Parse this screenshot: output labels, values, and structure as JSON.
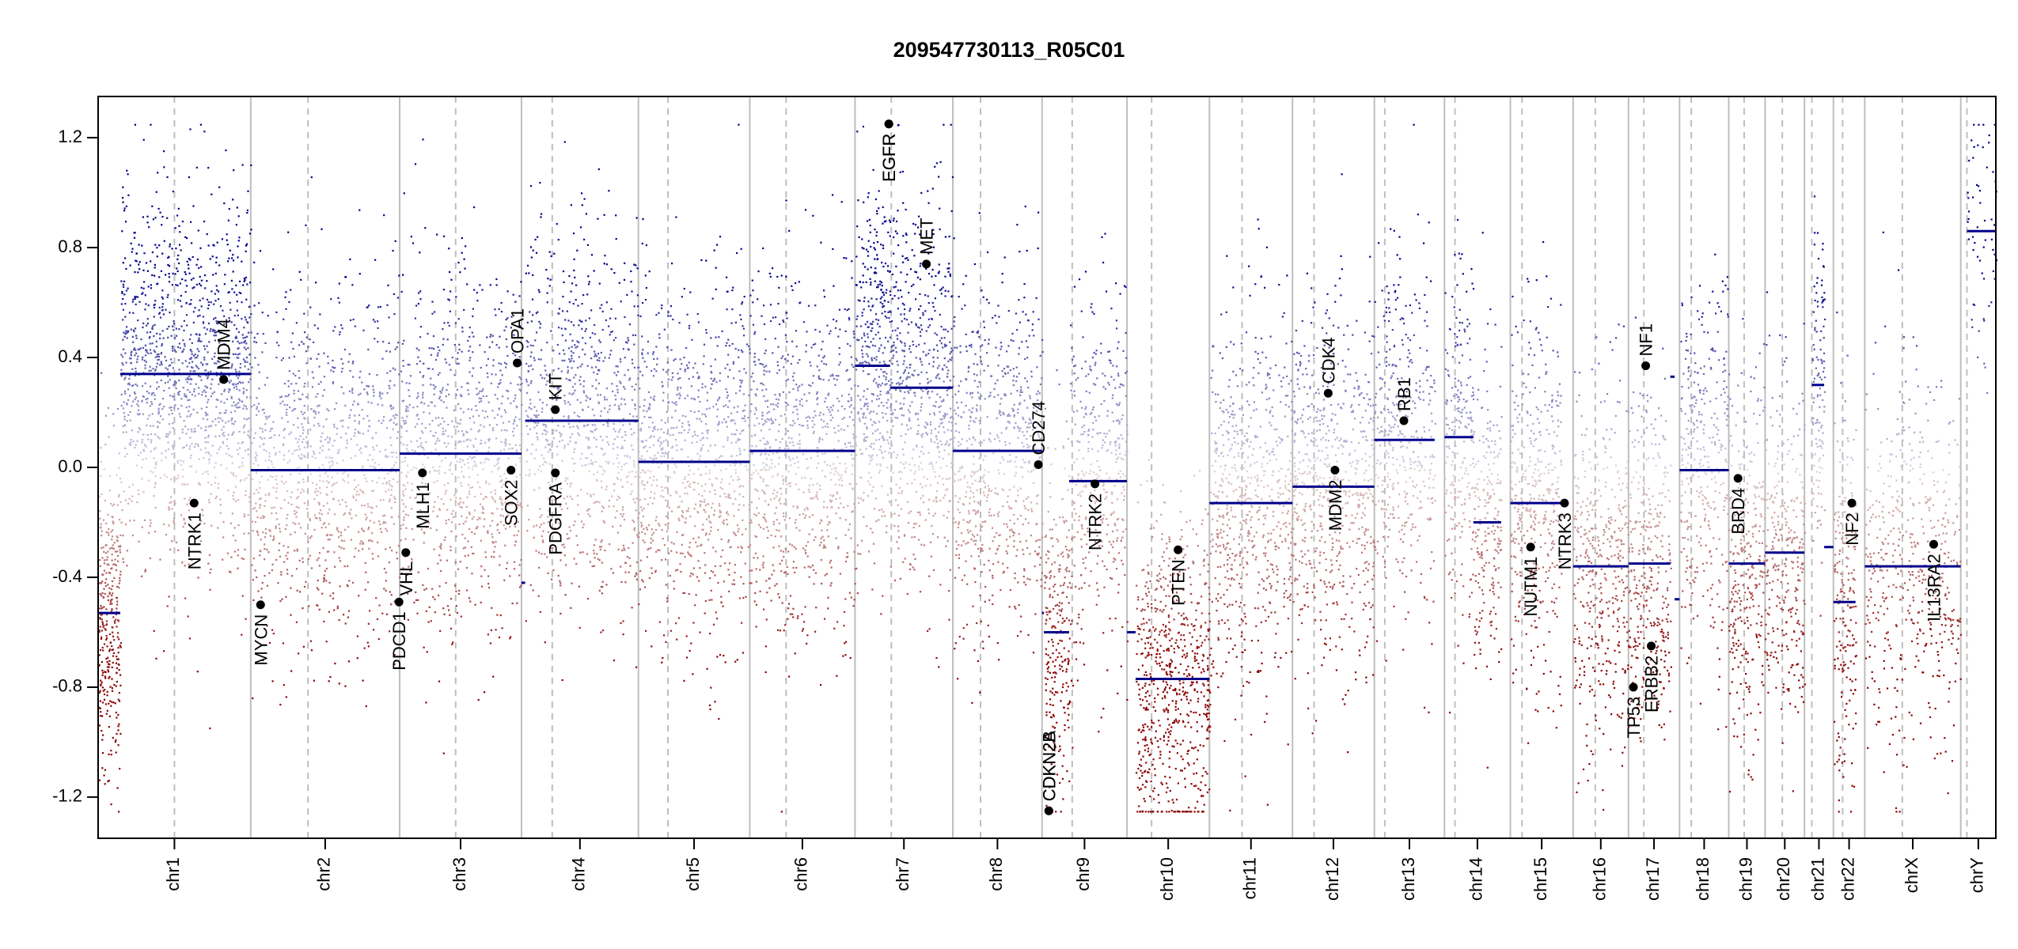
{
  "chart_data": {
    "type": "scatter",
    "title": "209547730113_R05C01",
    "xlabel": "",
    "ylabel": "",
    "ylim": [
      -1.35,
      1.35
    ],
    "y_ticks": [
      -1.2,
      -0.8,
      -0.4,
      0.0,
      0.4,
      0.8,
      1.2
    ],
    "y_tick_labels": [
      "-1.2",
      "-0.8",
      "-0.4",
      "0.0",
      "0.4",
      "0.8",
      "1.2"
    ],
    "grid": false,
    "colors": {
      "gain": "#00008b",
      "loss": "#8b0000",
      "segment": "#00008b",
      "frame": "#000000",
      "boundary": "#bebebe"
    },
    "chromosomes": [
      {
        "name": "chr1",
        "start": 0,
        "end": 248,
        "centromere": 124
      },
      {
        "name": "chr2",
        "start": 248,
        "end": 490,
        "centromere": 341
      },
      {
        "name": "chr3",
        "start": 490,
        "end": 688,
        "centromere": 581
      },
      {
        "name": "chr4",
        "start": 688,
        "end": 878,
        "centromere": 738
      },
      {
        "name": "chr5",
        "start": 878,
        "end": 1059,
        "centromere": 926
      },
      {
        "name": "chr6",
        "start": 1059,
        "end": 1230,
        "centromere": 1118
      },
      {
        "name": "chr7",
        "start": 1230,
        "end": 1389,
        "centromere": 1289
      },
      {
        "name": "chr8",
        "start": 1389,
        "end": 1534,
        "centromere": 1434
      },
      {
        "name": "chr9",
        "start": 1534,
        "end": 1672,
        "centromere": 1583
      },
      {
        "name": "chr10",
        "start": 1672,
        "end": 1806,
        "centromere": 1712
      },
      {
        "name": "chr11",
        "start": 1806,
        "end": 1941,
        "centromere": 1859
      },
      {
        "name": "chr12",
        "start": 1941,
        "end": 2074,
        "centromere": 1976
      },
      {
        "name": "chr13",
        "start": 2074,
        "end": 2188,
        "centromere": 2091
      },
      {
        "name": "chr14",
        "start": 2188,
        "end": 2295,
        "centromere": 2205
      },
      {
        "name": "chr15",
        "start": 2295,
        "end": 2397,
        "centromere": 2314
      },
      {
        "name": "chr16",
        "start": 2397,
        "end": 2487,
        "centromere": 2433
      },
      {
        "name": "chr17",
        "start": 2487,
        "end": 2570,
        "centromere": 2512
      },
      {
        "name": "chr18",
        "start": 2570,
        "end": 2650,
        "centromere": 2589
      },
      {
        "name": "chr19",
        "start": 2650,
        "end": 2709,
        "centromere": 2675
      },
      {
        "name": "chr20",
        "start": 2709,
        "end": 2773,
        "centromere": 2737
      },
      {
        "name": "chr21",
        "start": 2773,
        "end": 2820,
        "centromere": 2785
      },
      {
        "name": "chr22",
        "start": 2820,
        "end": 2871,
        "centromere": 2835
      },
      {
        "name": "chrX",
        "start": 2871,
        "end": 3027,
        "centromere": 2932
      },
      {
        "name": "chrY",
        "start": 3027,
        "end": 3084,
        "centromere": 3037
      }
    ],
    "segments": [
      {
        "chr": "chr1",
        "start": 0,
        "end": 36,
        "value": -0.53
      },
      {
        "chr": "chr1",
        "start": 36,
        "end": 248,
        "value": 0.34
      },
      {
        "chr": "chr2",
        "start": 248,
        "end": 490,
        "value": -0.01
      },
      {
        "chr": "chr3",
        "start": 490,
        "end": 688,
        "value": 0.05
      },
      {
        "chr": "chr4",
        "start": 688,
        "end": 694,
        "value": -0.42
      },
      {
        "chr": "chr4",
        "start": 694,
        "end": 878,
        "value": 0.17
      },
      {
        "chr": "chr5",
        "start": 878,
        "end": 1059,
        "value": 0.02
      },
      {
        "chr": "chr6",
        "start": 1059,
        "end": 1230,
        "value": 0.06
      },
      {
        "chr": "chr7",
        "start": 1230,
        "end": 1287,
        "value": 0.37
      },
      {
        "chr": "chr7",
        "start": 1287,
        "end": 1389,
        "value": 0.29
      },
      {
        "chr": "chr8",
        "start": 1389,
        "end": 1534,
        "value": 0.06
      },
      {
        "chr": "chr9",
        "start": 1534,
        "end": 1537,
        "value": -0.53
      },
      {
        "chr": "chr9",
        "start": 1537,
        "end": 1578,
        "value": -0.6
      },
      {
        "chr": "chr9",
        "start": 1578,
        "end": 1672,
        "value": -0.05
      },
      {
        "chr": "chr10",
        "start": 1672,
        "end": 1686,
        "value": -0.6
      },
      {
        "chr": "chr10",
        "start": 1686,
        "end": 1806,
        "value": -0.77
      },
      {
        "chr": "chr11",
        "start": 1806,
        "end": 1941,
        "value": -0.13
      },
      {
        "chr": "chr12",
        "start": 1941,
        "end": 2074,
        "value": -0.07
      },
      {
        "chr": "chr13",
        "start": 2074,
        "end": 2172,
        "value": 0.1
      },
      {
        "chr": "chr14",
        "start": 2188,
        "end": 2235,
        "value": 0.11
      },
      {
        "chr": "chr14",
        "start": 2235,
        "end": 2280,
        "value": -0.2
      },
      {
        "chr": "chr15",
        "start": 2295,
        "end": 2377,
        "value": -0.13
      },
      {
        "chr": "chr16",
        "start": 2397,
        "end": 2487,
        "value": -0.36
      },
      {
        "chr": "chr17",
        "start": 2487,
        "end": 2555,
        "value": -0.35
      },
      {
        "chr": "chr17",
        "start": 2555,
        "end": 2562,
        "value": 0.33
      },
      {
        "chr": "chr17",
        "start": 2562,
        "end": 2570,
        "value": -0.48
      },
      {
        "chr": "chr18",
        "start": 2570,
        "end": 2650,
        "value": -0.01
      },
      {
        "chr": "chr19",
        "start": 2650,
        "end": 2709,
        "value": -0.35
      },
      {
        "chr": "chr20",
        "start": 2709,
        "end": 2773,
        "value": -0.31
      },
      {
        "chr": "chr21",
        "start": 2785,
        "end": 2805,
        "value": 0.3
      },
      {
        "chr": "chr21",
        "start": 2805,
        "end": 2820,
        "value": -0.29
      },
      {
        "chr": "chr22",
        "start": 2820,
        "end": 2856,
        "value": -0.49
      },
      {
        "chr": "chrX",
        "start": 2871,
        "end": 3027,
        "value": -0.36
      },
      {
        "chr": "chrY",
        "start": 3037,
        "end": 3084,
        "value": 0.86
      }
    ],
    "genes": [
      {
        "name": "NTRK1",
        "pos": 156,
        "value": -0.13,
        "label_side": "below"
      },
      {
        "name": "MDM4",
        "pos": 204,
        "value": 0.32,
        "label_side": "above"
      },
      {
        "name": "MYCN",
        "pos": 264,
        "value": -0.5,
        "label_side": "below"
      },
      {
        "name": "PDCD1",
        "pos": 489,
        "value": -0.49,
        "label_side": "below"
      },
      {
        "name": "VHL",
        "pos": 500,
        "value": -0.31,
        "label_side": "below"
      },
      {
        "name": "MLH1",
        "pos": 527,
        "value": -0.02,
        "label_side": "below"
      },
      {
        "name": "SOX2",
        "pos": 671,
        "value": -0.01,
        "label_side": "below"
      },
      {
        "name": "OPA1",
        "pos": 681,
        "value": 0.38,
        "label_side": "above"
      },
      {
        "name": "KIT",
        "pos": 743,
        "value": 0.21,
        "label_side": "above"
      },
      {
        "name": "PDGFRA",
        "pos": 743,
        "value": -0.02,
        "label_side": "below"
      },
      {
        "name": "EGFR",
        "pos": 1285,
        "value": 1.25,
        "label_side": "below"
      },
      {
        "name": "EGFR",
        "pos": 1285,
        "value": 1.25,
        "label_side": "below"
      },
      {
        "name": "MET",
        "pos": 1346,
        "value": 0.74,
        "label_side": "above"
      },
      {
        "name": "CD274",
        "pos": 1528,
        "value": 0.01,
        "label_side": "above"
      },
      {
        "name": "CDKN2A",
        "pos": 1545,
        "value": -1.25,
        "label_side": "above"
      },
      {
        "name": "CDKN2B",
        "pos": 1545,
        "value": -1.25,
        "label_side": "above"
      },
      {
        "name": "NTRK2",
        "pos": 1620,
        "value": -0.06,
        "label_side": "below"
      },
      {
        "name": "PTEN",
        "pos": 1755,
        "value": -0.3,
        "label_side": "below"
      },
      {
        "name": "CDK4",
        "pos": 1999,
        "value": 0.27,
        "label_side": "above"
      },
      {
        "name": "MDM2",
        "pos": 2010,
        "value": -0.01,
        "label_side": "below"
      },
      {
        "name": "RB1",
        "pos": 2122,
        "value": 0.17,
        "label_side": "above"
      },
      {
        "name": "NUTM1",
        "pos": 2328,
        "value": -0.29,
        "label_side": "below"
      },
      {
        "name": "NTRK3",
        "pos": 2383,
        "value": -0.13,
        "label_side": "below"
      },
      {
        "name": "NF1",
        "pos": 2515,
        "value": 0.37,
        "label_side": "above"
      },
      {
        "name": "TP53",
        "pos": 2495,
        "value": -0.8,
        "label_side": "below"
      },
      {
        "name": "ERBB2",
        "pos": 2524,
        "value": -0.65,
        "label_side": "below"
      },
      {
        "name": "BRD4",
        "pos": 2665,
        "value": -0.04,
        "label_side": "below"
      },
      {
        "name": "NF2",
        "pos": 2850,
        "value": -0.13,
        "label_side": "below"
      },
      {
        "name": "IL13RA2",
        "pos": 2983,
        "value": -0.28,
        "label_side": "below"
      }
    ],
    "probe_profiles": [
      {
        "start": 0,
        "end": 36,
        "mean": -0.53,
        "sd": 0.3,
        "n": 330
      },
      {
        "start": 36,
        "end": 248,
        "mean": 0.34,
        "sd": 0.32,
        "n": 1300
      },
      {
        "start": 248,
        "end": 490,
        "mean": -0.01,
        "sd": 0.32,
        "n": 1000
      },
      {
        "start": 490,
        "end": 688,
        "mean": 0.05,
        "sd": 0.32,
        "n": 900
      },
      {
        "start": 694,
        "end": 878,
        "mean": 0.17,
        "sd": 0.32,
        "n": 850
      },
      {
        "start": 878,
        "end": 1059,
        "mean": 0.02,
        "sd": 0.32,
        "n": 850
      },
      {
        "start": 1059,
        "end": 1230,
        "mean": 0.06,
        "sd": 0.32,
        "n": 800
      },
      {
        "start": 1230,
        "end": 1287,
        "mean": 0.37,
        "sd": 0.34,
        "n": 400
      },
      {
        "start": 1287,
        "end": 1389,
        "mean": 0.29,
        "sd": 0.33,
        "n": 600
      },
      {
        "start": 1389,
        "end": 1534,
        "mean": 0.06,
        "sd": 0.32,
        "n": 650
      },
      {
        "start": 1537,
        "end": 1578,
        "mean": -0.6,
        "sd": 0.3,
        "n": 250
      },
      {
        "start": 1578,
        "end": 1672,
        "mean": -0.05,
        "sd": 0.32,
        "n": 400
      },
      {
        "start": 1686,
        "end": 1806,
        "mean": -0.77,
        "sd": 0.3,
        "n": 700
      },
      {
        "start": 1806,
        "end": 1941,
        "mean": -0.13,
        "sd": 0.33,
        "n": 650
      },
      {
        "start": 1941,
        "end": 2074,
        "mean": -0.07,
        "sd": 0.32,
        "n": 650
      },
      {
        "start": 2074,
        "end": 2172,
        "mean": 0.1,
        "sd": 0.32,
        "n": 400
      },
      {
        "start": 2188,
        "end": 2235,
        "mean": 0.11,
        "sd": 0.32,
        "n": 220
      },
      {
        "start": 2235,
        "end": 2280,
        "mean": -0.2,
        "sd": 0.32,
        "n": 220
      },
      {
        "start": 2295,
        "end": 2377,
        "mean": -0.13,
        "sd": 0.32,
        "n": 400
      },
      {
        "start": 2397,
        "end": 2487,
        "mean": -0.36,
        "sd": 0.32,
        "n": 420
      },
      {
        "start": 2487,
        "end": 2555,
        "mean": -0.35,
        "sd": 0.32,
        "n": 330
      },
      {
        "start": 2570,
        "end": 2650,
        "mean": -0.01,
        "sd": 0.32,
        "n": 350
      },
      {
        "start": 2650,
        "end": 2709,
        "mean": -0.35,
        "sd": 0.32,
        "n": 300
      },
      {
        "start": 2709,
        "end": 2773,
        "mean": -0.31,
        "sd": 0.32,
        "n": 300
      },
      {
        "start": 2785,
        "end": 2805,
        "mean": 0.3,
        "sd": 0.3,
        "n": 120
      },
      {
        "start": 2820,
        "end": 2856,
        "mean": -0.49,
        "sd": 0.32,
        "n": 200
      },
      {
        "start": 2871,
        "end": 3027,
        "mean": -0.36,
        "sd": 0.34,
        "n": 500
      },
      {
        "start": 3037,
        "end": 3084,
        "mean": 0.86,
        "sd": 0.3,
        "n": 60
      }
    ]
  }
}
